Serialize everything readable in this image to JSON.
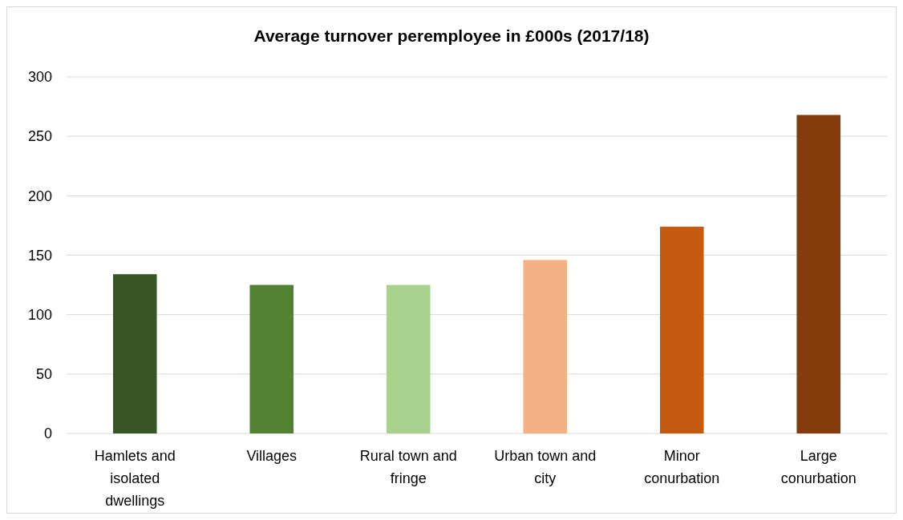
{
  "chart_data": {
    "type": "bar",
    "title": "Average turnover peremployee in £000s (2017/18)",
    "categories": [
      "Hamlets and isolated dwellings",
      "Villages",
      "Rural town and fringe",
      "Urban town and city",
      "Minor conurbation",
      "Large conurbation"
    ],
    "values": [
      134,
      125,
      125,
      146,
      174,
      268
    ],
    "colors": [
      "#375623",
      "#548235",
      "#a9d18e",
      "#f4b183",
      "#c55a11",
      "#843c0c"
    ],
    "ylim": [
      0,
      300
    ],
    "yticks": [
      0,
      50,
      100,
      150,
      200,
      250,
      300
    ],
    "grid": "y"
  }
}
